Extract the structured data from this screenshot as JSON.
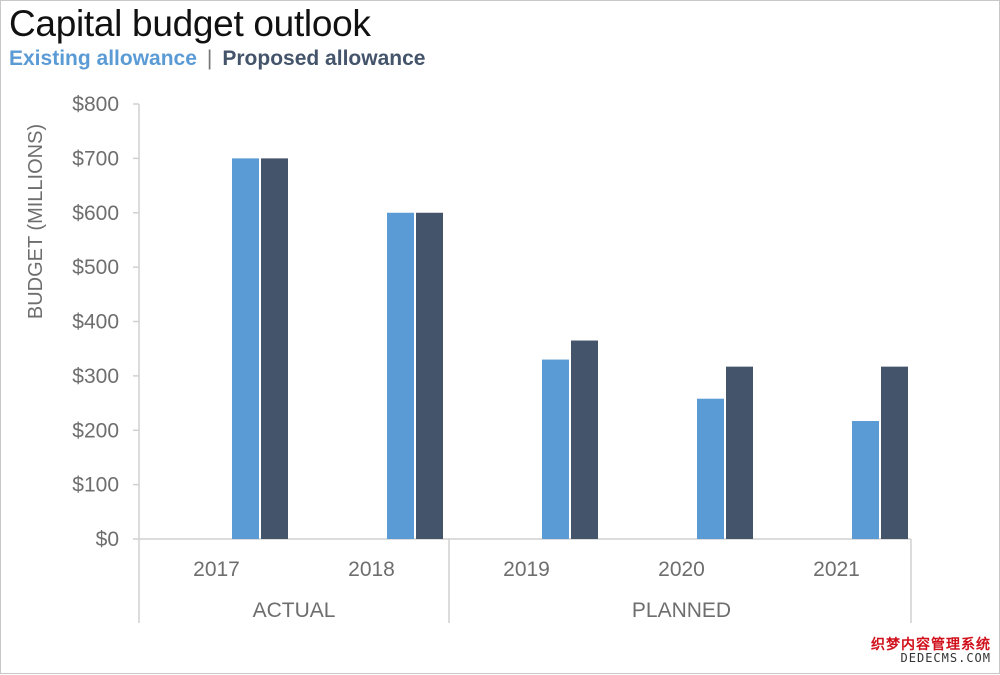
{
  "colors": {
    "existing": "#5b9bd5",
    "proposed": "#44546a",
    "axis": "#d0d0d0",
    "tick_text": "#6e6e6e"
  },
  "watermark": {
    "line1": "织梦内容管理系统",
    "line2": "DEDECMS.COM"
  },
  "chart_data": {
    "type": "bar",
    "title": "Capital budget outlook",
    "ylabel": "BUDGET (MILLIONS)",
    "xlabel": "",
    "ylim": [
      0,
      800
    ],
    "ytick_labels": [
      "$0",
      "$100",
      "$200",
      "$300",
      "$400",
      "$500",
      "$600",
      "$700",
      "$800"
    ],
    "categories": [
      "2017",
      "2018",
      "2019",
      "2020",
      "2021"
    ],
    "groups": [
      {
        "label": "ACTUAL",
        "categories": [
          "2017",
          "2018"
        ]
      },
      {
        "label": "PLANNED",
        "categories": [
          "2019",
          "2020",
          "2021"
        ]
      }
    ],
    "series": [
      {
        "name": "Existing allowance",
        "values": [
          700,
          600,
          330,
          258,
          217
        ]
      },
      {
        "name": "Proposed allowance",
        "values": [
          700,
          600,
          365,
          317,
          317
        ]
      }
    ],
    "legend_separator": "|",
    "grid": false,
    "legend_position": "top-left"
  }
}
